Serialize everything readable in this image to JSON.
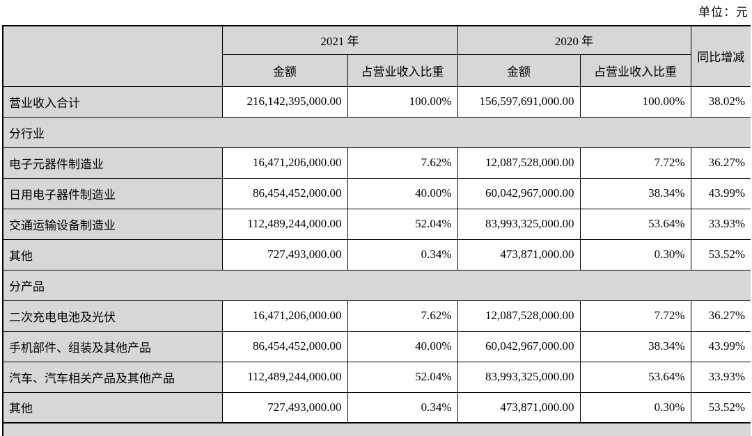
{
  "page": {
    "unit_label": "单位：元"
  },
  "table": {
    "headers": {
      "corner": "",
      "year_2021": "2021 年",
      "year_2020": "2020 年",
      "amount_2021": "金额",
      "ratio_2021": "占营业收入比重",
      "amount_2020": "金额",
      "ratio_2020": "占营业收入比重",
      "yoy": "同比增减"
    },
    "rows": [
      {
        "type": "data",
        "label": "营业收入合计",
        "amount_2021": "216,142,395,000.00",
        "ratio_2021": "100.00%",
        "amount_2020": "156,597,691,000.00",
        "ratio_2020": "100.00%",
        "yoy": "38.02%"
      },
      {
        "type": "section",
        "label": "分行业"
      },
      {
        "type": "data",
        "label": "电子元器件制造业",
        "amount_2021": "16,471,206,000.00",
        "ratio_2021": "7.62%",
        "amount_2020": "12,087,528,000.00",
        "ratio_2020": "7.72%",
        "yoy": "36.27%"
      },
      {
        "type": "data",
        "label": "日用电子器件制造业",
        "amount_2021": "86,454,452,000.00",
        "ratio_2021": "40.00%",
        "amount_2020": "60,042,967,000.00",
        "ratio_2020": "38.34%",
        "yoy": "43.99%"
      },
      {
        "type": "data",
        "label": "交通运输设备制造业",
        "amount_2021": "112,489,244,000.00",
        "ratio_2021": "52.04%",
        "amount_2020": "83,993,325,000.00",
        "ratio_2020": "53.64%",
        "yoy": "33.93%"
      },
      {
        "type": "data",
        "label": "其他",
        "amount_2021": "727,493,000.00",
        "ratio_2021": "0.34%",
        "amount_2020": "473,871,000.00",
        "ratio_2020": "0.30%",
        "yoy": "53.52%"
      },
      {
        "type": "section",
        "label": "分产品"
      },
      {
        "type": "data",
        "label": "二次充电电池及光伏",
        "amount_2021": "16,471,206,000.00",
        "ratio_2021": "7.62%",
        "amount_2020": "12,087,528,000.00",
        "ratio_2020": "7.72%",
        "yoy": "36.27%"
      },
      {
        "type": "data",
        "label": "手机部件、组装及其他产品",
        "amount_2021": "86,454,452,000.00",
        "ratio_2021": "40.00%",
        "amount_2020": "60,042,967,000.00",
        "ratio_2020": "38.34%",
        "yoy": "43.99%"
      },
      {
        "type": "data",
        "label": "汽车、汽车相关产品及其他产品",
        "amount_2021": "112,489,244,000.00",
        "ratio_2021": "52.04%",
        "amount_2020": "83,993,325,000.00",
        "ratio_2020": "53.64%",
        "yoy": "33.93%"
      },
      {
        "type": "data",
        "label": "其他",
        "amount_2021": "727,493,000.00",
        "ratio_2021": "0.34%",
        "amount_2020": "473,871,000.00",
        "ratio_2020": "0.30%",
        "yoy": "53.52%"
      }
    ]
  }
}
